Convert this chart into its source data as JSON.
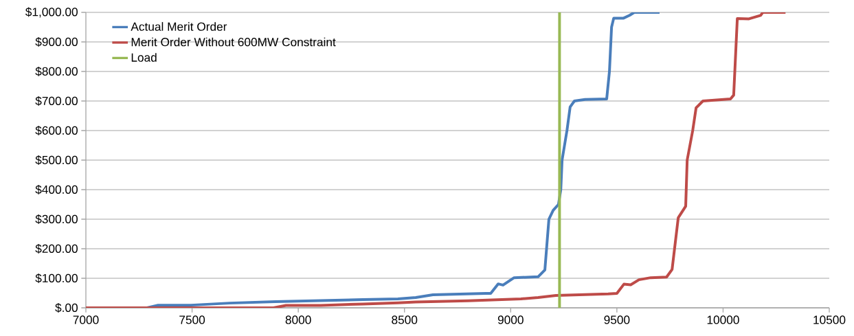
{
  "chart_data": {
    "type": "line",
    "legend": "top left",
    "grid": "y",
    "marker": "none",
    "line_style": "solid",
    "xlim": [
      7000,
      10500
    ],
    "xticks": [
      7000,
      7500,
      8000,
      8500,
      9000,
      9500,
      10000,
      10500
    ],
    "ylim": [
      0,
      1000
    ],
    "yticks": [
      {
        "value": 0,
        "label": "$.00"
      },
      {
        "value": 100,
        "label": "$100.00"
      },
      {
        "value": 200,
        "label": "$200.00"
      },
      {
        "value": 300,
        "label": "$300.00"
      },
      {
        "value": 400,
        "label": "$400.00"
      },
      {
        "value": 500,
        "label": "$500.00"
      },
      {
        "value": 600,
        "label": "$600.00"
      },
      {
        "value": 700,
        "label": "$700.00"
      },
      {
        "value": 800,
        "label": "$800.00"
      },
      {
        "value": 900,
        "label": "$900.00"
      },
      {
        "value": 1000,
        "label": "$1,000.00"
      }
    ],
    "series": [
      {
        "name": "Actual Merit Order",
        "color": "#4a7ebb",
        "x": [
          7000,
          7288,
          7340,
          7495,
          7676,
          7893,
          8304,
          8469,
          8553,
          8634,
          8883,
          8906,
          8941,
          8964,
          9016,
          9129,
          9161,
          9180,
          9200,
          9225,
          9236,
          9242,
          9265,
          9280,
          9300,
          9350,
          9452,
          9465,
          9475,
          9485,
          9530,
          9560,
          9582,
          9701
        ],
        "values": [
          0,
          0,
          9,
          9,
          16,
          21,
          28,
          30,
          35,
          44,
          49,
          49,
          81,
          77,
          102,
          105,
          128,
          300,
          330,
          350,
          400,
          500,
          600,
          680,
          700,
          705,
          707,
          800,
          950,
          980,
          980,
          990,
          1000,
          1000
        ]
      },
      {
        "name": "Merit Order Without 600MW Constraint",
        "color": "#be4b48",
        "x": [
          7000,
          7883,
          7942,
          8106,
          8304,
          8469,
          8553,
          8799,
          9048,
          9129,
          9213,
          9459,
          9500,
          9533,
          9565,
          9604,
          9659,
          9734,
          9760,
          9789,
          9824,
          9831,
          9857,
          9873,
          9905,
          10035,
          10050,
          10067,
          10122,
          10177,
          10187,
          10294
        ],
        "values": [
          0,
          0,
          8,
          8,
          13,
          17,
          20,
          24,
          30,
          35,
          42,
          47,
          49,
          80,
          78,
          95,
          102,
          104,
          130,
          305,
          344,
          500,
          600,
          677,
          700,
          707,
          720,
          979,
          978,
          990,
          1000,
          1000
        ]
      },
      {
        "name": "Load",
        "color": "#98b954",
        "x": [
          9230,
          9230
        ],
        "values": [
          0,
          1000
        ]
      }
    ]
  }
}
